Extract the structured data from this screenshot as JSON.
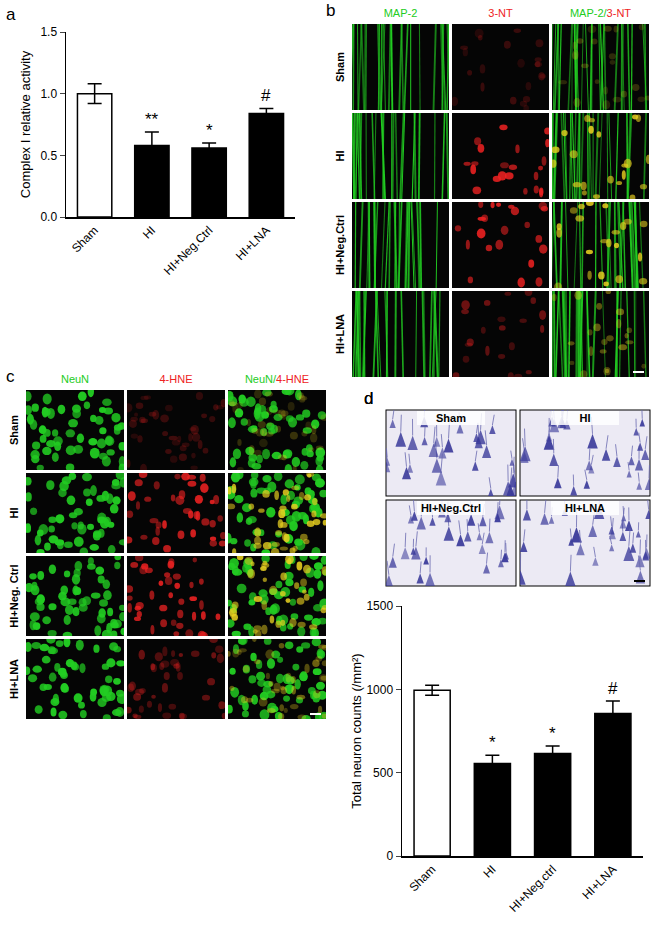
{
  "chart_data": [
    {
      "panel": "a",
      "type": "bar",
      "categories": [
        "Sham",
        "HI",
        "HI+Neg.Ctrl",
        "HI+LNA"
      ],
      "values": [
        1.0,
        0.58,
        0.56,
        0.84
      ],
      "errors": [
        0.08,
        0.11,
        0.04,
        0.04
      ],
      "colors": [
        "#ffffff",
        "#000000",
        "#000000",
        "#000000"
      ],
      "y_label": "Complex I relative activity",
      "ylim": [
        0,
        1.5
      ],
      "yticks": [
        {
          "value": 0,
          "label": "0.0"
        },
        {
          "value": 0.5,
          "label": "0.5"
        },
        {
          "value": 1,
          "label": "1.0"
        },
        {
          "value": 1.5,
          "label": "1.5"
        }
      ],
      "annotations": [
        null,
        "**",
        "*",
        "#"
      ],
      "grid": false
    },
    {
      "panel": "d",
      "type": "bar",
      "categories": [
        "Sham",
        "HI",
        "HI+Neg.ctrl",
        "HI+LNA"
      ],
      "values": [
        995,
        555,
        615,
        855
      ],
      "errors": [
        30,
        50,
        45,
        75
      ],
      "colors": [
        "#ffffff",
        "#000000",
        "#000000",
        "#000000"
      ],
      "y_label": "Total neuron counts (/mm²)",
      "ylim": [
        0,
        1500
      ],
      "yticks": [
        0,
        500,
        1000,
        1500
      ],
      "annotations": [
        null,
        "*",
        "*",
        "#"
      ],
      "grid": false
    }
  ],
  "image_panels": [
    {
      "panel": "b",
      "columns": [
        "MAP-2",
        "3-NT",
        "MAP-2/3-NT"
      ],
      "column_colors": [
        "#22cc22",
        "#ee2222"
      ],
      "rows": [
        "Sham",
        "HI",
        "HI+Neg.Ctrl",
        "HI+LNA"
      ]
    },
    {
      "panel": "c",
      "columns": [
        "NeuN",
        "4-HNE",
        "NeuN/4-HNE"
      ],
      "column_colors": [
        "#22cc22",
        "#ee2222"
      ],
      "rows": [
        "Sham",
        "HI",
        "HI+Neg. Ctrl",
        "HI+LNA"
      ]
    },
    {
      "panel": "d",
      "labels": [
        "Sham",
        "HI",
        "HI+Neg.Ctrl",
        "HI+LNA"
      ]
    }
  ]
}
